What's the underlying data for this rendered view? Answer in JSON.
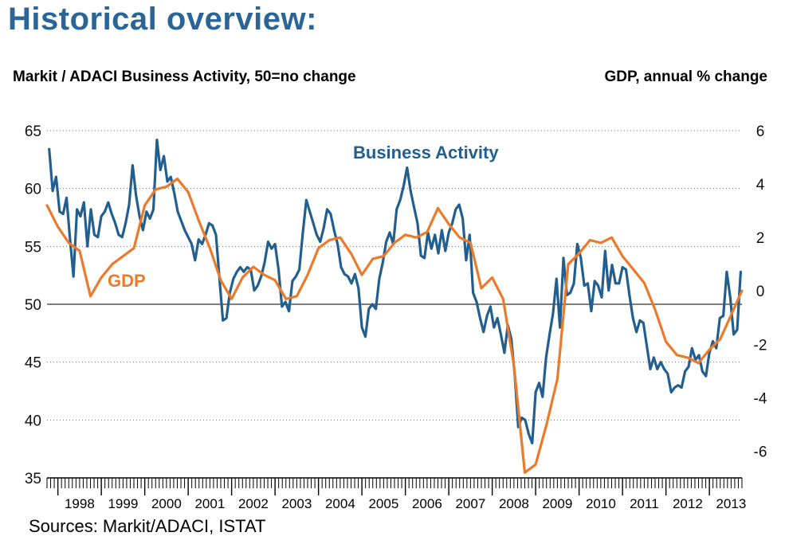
{
  "header": {
    "title": "Historical overview:",
    "left_axis_label": "Markit / ADACI  Business Activity, 50=no change",
    "right_axis_label": "GDP, annual % change",
    "source": "Sources: Markit/ADACI, ISTAT"
  },
  "colors": {
    "business_activity": "#235f8e",
    "gdp": "#ea7a2c",
    "title": "#2b6596"
  },
  "chart_data": {
    "type": "line",
    "x_range": [
      1997.75,
      2013.75
    ],
    "x_ticks": [
      "1998",
      "1999",
      "2000",
      "2001",
      "2002",
      "2003",
      "2004",
      "2005",
      "2006",
      "2007",
      "2008",
      "2009",
      "2010",
      "2011",
      "2012",
      "2013"
    ],
    "y_left": {
      "label": "Markit / ADACI  Business Activity, 50=no change",
      "lim": [
        35,
        65
      ],
      "ticks": [
        35,
        40,
        45,
        50,
        55,
        60,
        65
      ],
      "reference_line": 50
    },
    "y_right": {
      "label": "GDP, annual % change",
      "lim": [
        -7,
        6
      ],
      "ticks": [
        -6,
        -4,
        -2,
        0,
        2,
        4,
        6
      ]
    },
    "grid": "horizontal dotted",
    "series": [
      {
        "name": "Business Activity",
        "axis": "left",
        "points": [
          [
            1997.8,
            63.4
          ],
          [
            1997.88,
            59.8
          ],
          [
            1997.96,
            61.0
          ],
          [
            1998.04,
            58.0
          ],
          [
            1998.12,
            57.8
          ],
          [
            1998.2,
            59.2
          ],
          [
            1998.28,
            55.6
          ],
          [
            1998.36,
            52.4
          ],
          [
            1998.44,
            58.2
          ],
          [
            1998.52,
            57.6
          ],
          [
            1998.6,
            58.8
          ],
          [
            1998.68,
            55.0
          ],
          [
            1998.76,
            58.2
          ],
          [
            1998.84,
            56.0
          ],
          [
            1998.92,
            55.8
          ],
          [
            1999.0,
            57.6
          ],
          [
            1999.08,
            58.0
          ],
          [
            1999.16,
            58.8
          ],
          [
            1999.24,
            57.8
          ],
          [
            1999.32,
            57.0
          ],
          [
            1999.4,
            56.0
          ],
          [
            1999.48,
            55.8
          ],
          [
            1999.56,
            57.0
          ],
          [
            1999.64,
            58.6
          ],
          [
            1999.72,
            62.0
          ],
          [
            1999.8,
            59.4
          ],
          [
            1999.88,
            57.6
          ],
          [
            1999.96,
            56.4
          ],
          [
            2000.04,
            58.0
          ],
          [
            2000.12,
            57.4
          ],
          [
            2000.2,
            58.2
          ],
          [
            2000.28,
            64.2
          ],
          [
            2000.36,
            61.6
          ],
          [
            2000.44,
            62.8
          ],
          [
            2000.52,
            60.6
          ],
          [
            2000.6,
            61.0
          ],
          [
            2000.68,
            59.6
          ],
          [
            2000.76,
            58.0
          ],
          [
            2000.84,
            57.2
          ],
          [
            2000.92,
            56.4
          ],
          [
            2001.0,
            55.8
          ],
          [
            2001.08,
            55.2
          ],
          [
            2001.16,
            53.8
          ],
          [
            2001.24,
            55.6
          ],
          [
            2001.32,
            55.2
          ],
          [
            2001.4,
            56.0
          ],
          [
            2001.48,
            57.0
          ],
          [
            2001.56,
            56.8
          ],
          [
            2001.64,
            56.0
          ],
          [
            2001.72,
            52.2
          ],
          [
            2001.8,
            48.6
          ],
          [
            2001.88,
            48.8
          ],
          [
            2001.96,
            51.0
          ],
          [
            2002.04,
            52.2
          ],
          [
            2002.12,
            52.8
          ],
          [
            2002.2,
            53.2
          ],
          [
            2002.28,
            52.8
          ],
          [
            2002.36,
            53.2
          ],
          [
            2002.44,
            53.0
          ],
          [
            2002.52,
            51.2
          ],
          [
            2002.6,
            51.6
          ],
          [
            2002.68,
            52.4
          ],
          [
            2002.76,
            53.6
          ],
          [
            2002.84,
            55.4
          ],
          [
            2002.92,
            54.8
          ],
          [
            2003.0,
            55.2
          ],
          [
            2003.08,
            53.0
          ],
          [
            2003.16,
            49.8
          ],
          [
            2003.24,
            50.2
          ],
          [
            2003.32,
            49.4
          ],
          [
            2003.4,
            52.0
          ],
          [
            2003.48,
            52.4
          ],
          [
            2003.56,
            53.0
          ],
          [
            2003.64,
            56.2
          ],
          [
            2003.72,
            59.0
          ],
          [
            2003.8,
            58.0
          ],
          [
            2003.88,
            57.0
          ],
          [
            2003.96,
            56.0
          ],
          [
            2004.04,
            55.4
          ],
          [
            2004.12,
            56.6
          ],
          [
            2004.2,
            58.2
          ],
          [
            2004.28,
            57.8
          ],
          [
            2004.36,
            56.4
          ],
          [
            2004.44,
            55.2
          ],
          [
            2004.52,
            53.2
          ],
          [
            2004.6,
            52.6
          ],
          [
            2004.68,
            52.4
          ],
          [
            2004.76,
            51.8
          ],
          [
            2004.84,
            52.6
          ],
          [
            2004.92,
            51.4
          ],
          [
            2005.0,
            48.0
          ],
          [
            2005.08,
            47.2
          ],
          [
            2005.16,
            49.6
          ],
          [
            2005.24,
            50.0
          ],
          [
            2005.32,
            49.6
          ],
          [
            2005.4,
            52.2
          ],
          [
            2005.48,
            53.6
          ],
          [
            2005.56,
            55.4
          ],
          [
            2005.64,
            56.2
          ],
          [
            2005.72,
            55.2
          ],
          [
            2005.8,
            58.2
          ],
          [
            2005.88,
            59.0
          ],
          [
            2005.96,
            60.2
          ],
          [
            2006.04,
            61.8
          ],
          [
            2006.12,
            59.8
          ],
          [
            2006.2,
            58.4
          ],
          [
            2006.28,
            57.0
          ],
          [
            2006.36,
            54.2
          ],
          [
            2006.44,
            54.0
          ],
          [
            2006.52,
            56.2
          ],
          [
            2006.6,
            54.8
          ],
          [
            2006.68,
            56.0
          ],
          [
            2006.76,
            54.4
          ],
          [
            2006.84,
            56.4
          ],
          [
            2006.92,
            54.6
          ],
          [
            2007.0,
            56.2
          ],
          [
            2007.08,
            57.0
          ],
          [
            2007.16,
            58.2
          ],
          [
            2007.24,
            58.6
          ],
          [
            2007.32,
            57.4
          ],
          [
            2007.4,
            53.8
          ],
          [
            2007.48,
            56.0
          ],
          [
            2007.56,
            51.0
          ],
          [
            2007.64,
            50.2
          ],
          [
            2007.72,
            48.8
          ],
          [
            2007.8,
            47.6
          ],
          [
            2007.88,
            49.0
          ],
          [
            2007.96,
            49.8
          ],
          [
            2008.04,
            48.0
          ],
          [
            2008.12,
            48.8
          ],
          [
            2008.2,
            47.4
          ],
          [
            2008.28,
            45.8
          ],
          [
            2008.36,
            48.2
          ],
          [
            2008.44,
            47.0
          ],
          [
            2008.52,
            43.8
          ],
          [
            2008.6,
            39.4
          ],
          [
            2008.68,
            40.2
          ],
          [
            2008.76,
            40.0
          ],
          [
            2008.84,
            38.8
          ],
          [
            2008.92,
            38.0
          ],
          [
            2009.0,
            42.4
          ],
          [
            2009.08,
            43.2
          ],
          [
            2009.16,
            42.0
          ],
          [
            2009.24,
            45.4
          ],
          [
            2009.32,
            47.4
          ],
          [
            2009.4,
            49.2
          ],
          [
            2009.48,
            52.2
          ],
          [
            2009.56,
            48.0
          ],
          [
            2009.64,
            54.0
          ],
          [
            2009.72,
            50.8
          ],
          [
            2009.8,
            51.0
          ],
          [
            2009.88,
            51.8
          ],
          [
            2009.96,
            55.2
          ],
          [
            2010.04,
            54.0
          ],
          [
            2010.12,
            51.6
          ],
          [
            2010.2,
            51.8
          ],
          [
            2010.28,
            49.4
          ],
          [
            2010.36,
            52.0
          ],
          [
            2010.44,
            51.6
          ],
          [
            2010.52,
            50.6
          ],
          [
            2010.6,
            54.6
          ],
          [
            2010.68,
            51.2
          ],
          [
            2010.76,
            53.4
          ],
          [
            2010.84,
            51.8
          ],
          [
            2010.92,
            51.8
          ],
          [
            2011.0,
            53.2
          ],
          [
            2011.08,
            53.0
          ],
          [
            2011.16,
            50.8
          ],
          [
            2011.24,
            48.8
          ],
          [
            2011.32,
            47.6
          ],
          [
            2011.4,
            48.6
          ],
          [
            2011.48,
            48.4
          ],
          [
            2011.56,
            46.4
          ],
          [
            2011.64,
            44.4
          ],
          [
            2011.72,
            45.4
          ],
          [
            2011.8,
            44.4
          ],
          [
            2011.88,
            45.0
          ],
          [
            2011.96,
            44.4
          ],
          [
            2012.04,
            44.0
          ],
          [
            2012.12,
            42.4
          ],
          [
            2012.2,
            42.8
          ],
          [
            2012.28,
            43.0
          ],
          [
            2012.36,
            42.8
          ],
          [
            2012.44,
            44.2
          ],
          [
            2012.52,
            44.6
          ],
          [
            2012.6,
            46.2
          ],
          [
            2012.68,
            45.2
          ],
          [
            2012.76,
            45.6
          ],
          [
            2012.84,
            44.2
          ],
          [
            2012.92,
            43.8
          ],
          [
            2013.0,
            45.8
          ],
          [
            2013.08,
            46.8
          ],
          [
            2013.16,
            46.2
          ],
          [
            2013.24,
            48.8
          ],
          [
            2013.32,
            49.0
          ],
          [
            2013.4,
            52.8
          ],
          [
            2013.48,
            50.6
          ],
          [
            2013.56,
            47.4
          ],
          [
            2013.64,
            47.8
          ],
          [
            2013.72,
            52.8
          ]
        ]
      },
      {
        "name": "GDP",
        "axis": "right",
        "points": [
          [
            1997.75,
            3.2
          ],
          [
            1998.0,
            2.4
          ],
          [
            1998.25,
            1.8
          ],
          [
            1998.5,
            1.5
          ],
          [
            1998.75,
            -0.2
          ],
          [
            1999.0,
            0.5
          ],
          [
            1999.25,
            1.0
          ],
          [
            1999.5,
            1.3
          ],
          [
            1999.75,
            1.6
          ],
          [
            2000.0,
            3.2
          ],
          [
            2000.25,
            3.8
          ],
          [
            2000.5,
            3.9
          ],
          [
            2000.75,
            4.2
          ],
          [
            2001.0,
            3.7
          ],
          [
            2001.25,
            2.6
          ],
          [
            2001.5,
            1.6
          ],
          [
            2001.75,
            0.4
          ],
          [
            2002.0,
            -0.3
          ],
          [
            2002.25,
            0.5
          ],
          [
            2002.5,
            0.9
          ],
          [
            2002.75,
            0.6
          ],
          [
            2003.0,
            0.4
          ],
          [
            2003.25,
            -0.3
          ],
          [
            2003.5,
            -0.2
          ],
          [
            2003.75,
            0.6
          ],
          [
            2004.0,
            1.6
          ],
          [
            2004.25,
            1.9
          ],
          [
            2004.5,
            2.0
          ],
          [
            2004.75,
            1.4
          ],
          [
            2005.0,
            0.6
          ],
          [
            2005.25,
            1.2
          ],
          [
            2005.5,
            1.3
          ],
          [
            2005.75,
            1.8
          ],
          [
            2006.0,
            2.1
          ],
          [
            2006.25,
            2.0
          ],
          [
            2006.5,
            2.2
          ],
          [
            2006.75,
            3.1
          ],
          [
            2007.0,
            2.5
          ],
          [
            2007.25,
            2.0
          ],
          [
            2007.5,
            1.8
          ],
          [
            2007.75,
            0.1
          ],
          [
            2008.0,
            0.5
          ],
          [
            2008.25,
            -0.3
          ],
          [
            2008.5,
            -2.8
          ],
          [
            2008.75,
            -6.8
          ],
          [
            2009.0,
            -6.5
          ],
          [
            2009.25,
            -5.0
          ],
          [
            2009.5,
            -3.3
          ],
          [
            2009.75,
            1.0
          ],
          [
            2010.0,
            1.4
          ],
          [
            2010.25,
            1.9
          ],
          [
            2010.5,
            1.8
          ],
          [
            2010.75,
            2.0
          ],
          [
            2011.0,
            1.3
          ],
          [
            2011.25,
            0.8
          ],
          [
            2011.5,
            0.3
          ],
          [
            2011.75,
            -0.7
          ],
          [
            2012.0,
            -1.9
          ],
          [
            2012.25,
            -2.4
          ],
          [
            2012.5,
            -2.5
          ],
          [
            2012.75,
            -2.7
          ],
          [
            2013.0,
            -2.2
          ],
          [
            2013.25,
            -1.8
          ],
          [
            2013.5,
            -0.9
          ],
          [
            2013.75,
            0.0
          ]
        ]
      }
    ],
    "annotations": [
      {
        "text": "Business Activity",
        "series": "Business Activity"
      },
      {
        "text": "GDP",
        "series": "GDP"
      }
    ]
  }
}
